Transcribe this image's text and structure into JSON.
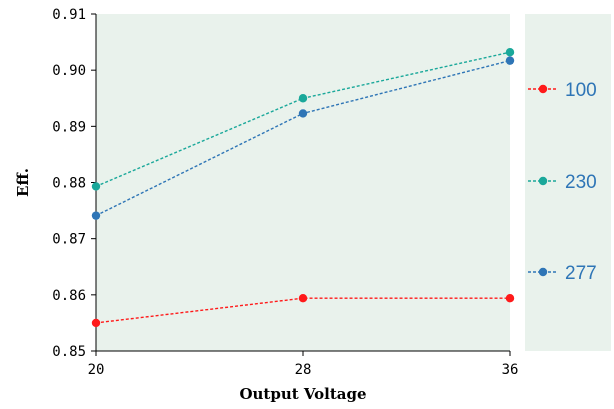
{
  "chart_data": {
    "type": "line",
    "xlabel": "Output Voltage",
    "ylabel": "Eff.",
    "x": [
      20,
      28,
      36
    ],
    "x_ticks": [
      "20",
      "28",
      "36"
    ],
    "ylim": [
      0.85,
      0.91
    ],
    "y_ticks": [
      "0.85",
      "0.86",
      "0.87",
      "0.88",
      "0.89",
      "0.90",
      "0.91"
    ],
    "grid": false,
    "legend_position": "right",
    "plot_background": "#e9f2ec",
    "series": [
      {
        "name": "100",
        "color": "#ff1a1a",
        "line_style": "dashed",
        "values": [
          0.855,
          0.8594,
          0.8594
        ]
      },
      {
        "name": "230",
        "color": "#1aa89a",
        "line_style": "dashed",
        "values": [
          0.8793,
          0.895,
          0.9032
        ]
      },
      {
        "name": "277",
        "color": "#2e75b6",
        "line_style": "dashed",
        "values": [
          0.8741,
          0.8923,
          0.9017
        ]
      }
    ],
    "legend_text_color": "#2e75b6"
  }
}
